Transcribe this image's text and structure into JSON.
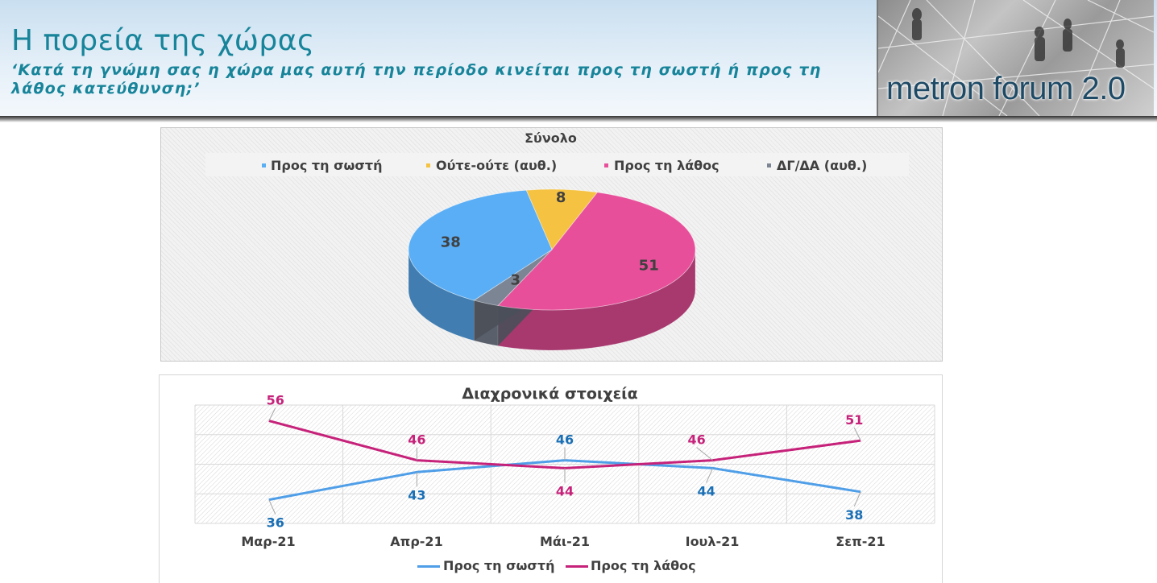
{
  "header": {
    "title": "Η πορεία της χώρας",
    "subtitle": "‘Κατά τη γνώμη σας η χώρα μας αυτή την περίοδο κινείται προς τη σωστή ή προς τη λάθος κατεύθυνση;’",
    "logo_text": "metron forum 2.0"
  },
  "colors": {
    "right": "#5aaef5",
    "neither": "#f5c242",
    "wrong": "#e84f9a",
    "dk": "#7b8594",
    "line_right": "#4f9ee8",
    "line_wrong": "#c6227a",
    "label_right": "#1a6fb5",
    "label_wrong": "#c6227a"
  },
  "chart_data": [
    {
      "type": "pie",
      "title": "Σύνολο",
      "legend": "top",
      "slices": [
        {
          "label": "Προς τη σωστή",
          "value": 38,
          "color_key": "right"
        },
        {
          "label": "Ούτε-ούτε (αυθ.)",
          "value": 8,
          "color_key": "neither"
        },
        {
          "label": "Προς τη λάθος",
          "value": 51,
          "color_key": "wrong"
        },
        {
          "label": "ΔΓ/ΔΑ (αυθ.)",
          "value": 3,
          "color_key": "dk"
        }
      ]
    },
    {
      "type": "line",
      "title": "Διαχρονικά στοιχεία",
      "legend": "bottom",
      "grid": true,
      "categories": [
        "Μαρ-21",
        "Απρ-21",
        "Μάι-21",
        "Ιουλ-21",
        "Σεπ-21"
      ],
      "ylim": [
        30,
        60
      ],
      "series": [
        {
          "name": "Προς τη σωστή",
          "values": [
            36,
            43,
            46,
            44,
            38
          ]
        },
        {
          "name": "Προς τη λάθος",
          "values": [
            56,
            46,
            44,
            46,
            51
          ]
        }
      ]
    }
  ]
}
